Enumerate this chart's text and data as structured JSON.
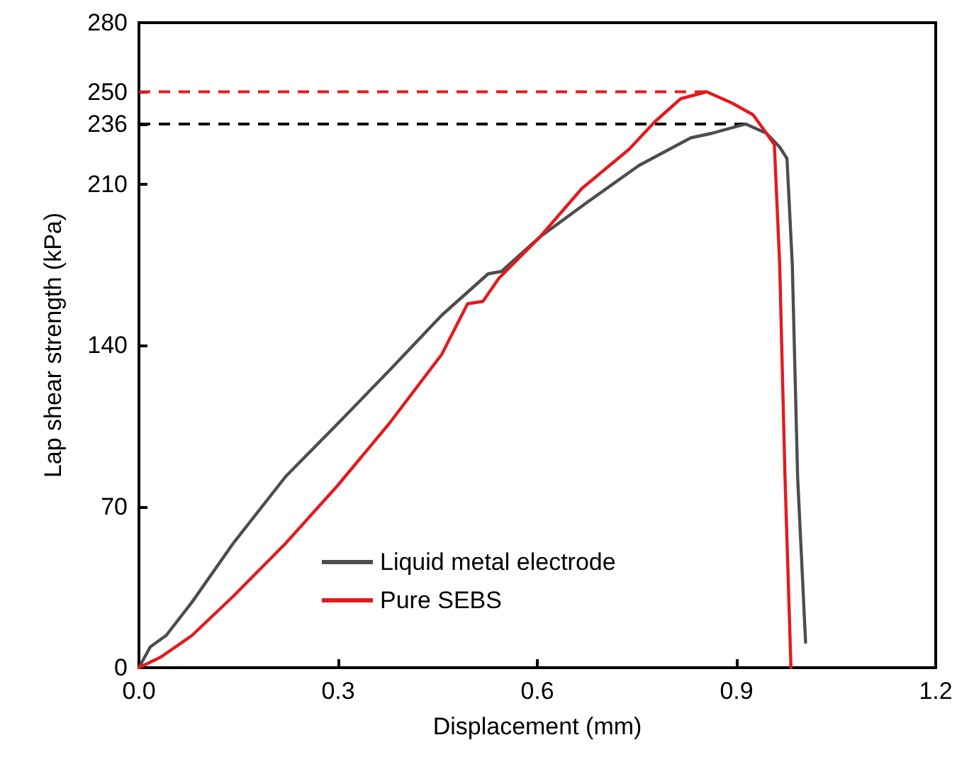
{
  "chart_data": {
    "type": "line",
    "xlabel": "Displacement (mm)",
    "ylabel": "Lap shear strength (kPa)",
    "xlim": [
      0,
      1.2
    ],
    "xticks": [
      {
        "value": 0,
        "label": "0.0"
      },
      0.3,
      0.6,
      0.9,
      1.2
    ],
    "ylim": [
      0,
      280
    ],
    "yticks": [
      0,
      70,
      140,
      210,
      236,
      250,
      280
    ],
    "series": [
      {
        "name": "Liquid metal electrode",
        "color": "#4d4d4d",
        "x": [
          0,
          0.017,
          0.041,
          0.08,
          0.142,
          0.221,
          0.303,
          0.377,
          0.456,
          0.526,
          0.546,
          0.604,
          0.675,
          0.753,
          0.831,
          0.863,
          0.914,
          0.945,
          0.965,
          0.976,
          0.984,
          0.992,
          1.004
        ],
        "values": [
          0,
          9,
          14,
          28.5,
          54,
          83,
          107,
          129,
          153,
          171,
          172,
          187,
          202,
          218,
          230,
          232,
          236,
          232,
          226,
          221,
          175,
          83,
          11
        ]
      },
      {
        "name": "Pure SEBS",
        "color": "#e41a1c",
        "x": [
          0,
          0.033,
          0.08,
          0.142,
          0.221,
          0.299,
          0.377,
          0.456,
          0.495,
          0.518,
          0.542,
          0.604,
          0.667,
          0.738,
          0.777,
          0.816,
          0.855,
          0.894,
          0.925,
          0.945,
          0.957,
          0.965,
          0.973,
          0.982
        ],
        "values": [
          0,
          4.6,
          14,
          31,
          54,
          79,
          106,
          136,
          158,
          159,
          169,
          187,
          208,
          225,
          237,
          247,
          250,
          245,
          240,
          232,
          227,
          175,
          83,
          0
        ]
      }
    ],
    "ref_lines": [
      {
        "axis": "y",
        "value": 250,
        "color": "#e41a1c",
        "line_style": "dashed"
      },
      {
        "axis": "y",
        "value": 236,
        "color": "#000000",
        "line_style": "dashed"
      }
    ],
    "legend": "bottom left",
    "grid": false,
    "marker": "none",
    "line_style": "solid"
  }
}
